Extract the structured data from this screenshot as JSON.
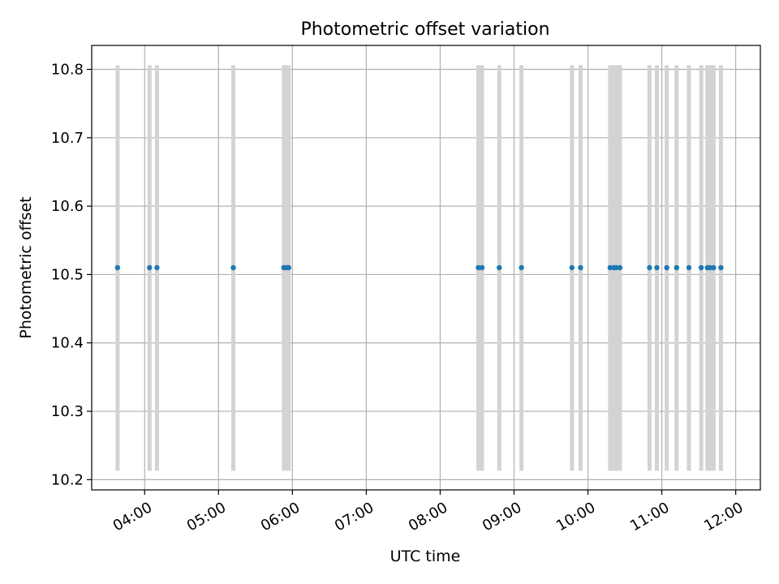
{
  "chart_data": {
    "type": "scatter",
    "title": "Photometric offset variation",
    "xlabel": "UTC time",
    "ylabel": "Photometric offset",
    "x_axis_kind": "time",
    "xlim": [
      "03:17",
      "12:20"
    ],
    "ylim": [
      10.185,
      10.835
    ],
    "grid": true,
    "xtick_labels": [
      "04:00",
      "05:00",
      "06:00",
      "07:00",
      "08:00",
      "09:00",
      "10:00",
      "11:00",
      "12:00"
    ],
    "ytick_values": [
      10.2,
      10.3,
      10.4,
      10.5,
      10.6,
      10.7,
      10.8
    ],
    "ytick_labels": [
      "10.2",
      "10.3",
      "10.4",
      "10.5",
      "10.6",
      "10.7",
      "10.8"
    ],
    "series": [
      {
        "kind": "points",
        "color": "#1f77b4",
        "x": [
          "03:38",
          "04:04",
          "04:10",
          "05:12",
          "05:53",
          "05:55",
          "05:57",
          "08:31",
          "08:34",
          "08:48",
          "09:06",
          "09:47",
          "09:54",
          "10:18",
          "10:21",
          "10:23",
          "10:26",
          "10:50",
          "10:56",
          "11:04",
          "11:12",
          "11:22",
          "11:32",
          "11:37",
          "11:39",
          "11:42",
          "11:48"
        ],
        "y": [
          10.51,
          10.51,
          10.51,
          10.51,
          10.51,
          10.51,
          10.51,
          10.51,
          10.51,
          10.51,
          10.51,
          10.51,
          10.51,
          10.51,
          10.51,
          10.51,
          10.51,
          10.51,
          10.51,
          10.51,
          10.51,
          10.51,
          10.51,
          10.51,
          10.51,
          10.51,
          10.51
        ]
      },
      {
        "kind": "vertical-bands",
        "color": "#d3d3d3",
        "y_range": [
          10.213,
          10.806
        ],
        "x": [
          "03:38",
          "04:04",
          "04:10",
          "05:12",
          "05:53",
          "05:55",
          "05:57",
          "08:31",
          "08:34",
          "08:48",
          "09:06",
          "09:47",
          "09:54",
          "10:18",
          "10:21",
          "10:23",
          "10:26",
          "10:50",
          "10:56",
          "11:04",
          "11:12",
          "11:22",
          "11:32",
          "11:37",
          "11:39",
          "11:42",
          "11:48"
        ]
      }
    ]
  }
}
